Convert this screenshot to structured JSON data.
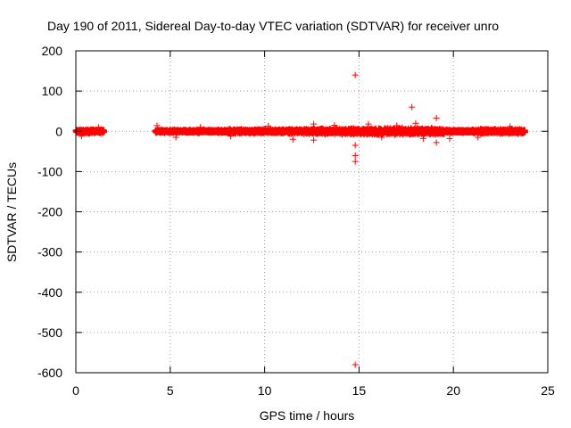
{
  "chart_data": {
    "type": "scatter",
    "title": "Day 190 of 2011, Sidereal Day-to-day VTEC variation (SDTVAR) for receiver unro",
    "xlabel": "GPS time / hours",
    "ylabel": "SDTVAR / TECUs",
    "xlim": [
      0,
      25
    ],
    "ylim": [
      -600,
      200
    ],
    "x_ticks": [
      0,
      5,
      10,
      15,
      20,
      25
    ],
    "y_ticks": [
      -600,
      -500,
      -400,
      -300,
      -200,
      -100,
      0,
      100,
      200
    ],
    "x_tick_labels": [
      "0",
      "5",
      "10",
      "15",
      "20",
      "25"
    ],
    "y_tick_labels": [
      "-600",
      "-500",
      "-400",
      "-300",
      "-200",
      "-100",
      "0",
      "100",
      "200"
    ],
    "grid": true,
    "marker": "+",
    "marker_color": "#ff0000",
    "series": [
      {
        "name": "SDTVAR",
        "dense_bands": [
          {
            "x_start": 0.0,
            "x_end": 1.5,
            "y_center": 0,
            "y_spread": 6
          },
          {
            "x_start": 4.2,
            "x_end": 8.0,
            "y_center": 0,
            "y_spread": 5
          },
          {
            "x_start": 8.0,
            "x_end": 12.5,
            "y_center": 0,
            "y_spread": 7
          },
          {
            "x_start": 12.5,
            "x_end": 14.5,
            "y_center": 0,
            "y_spread": 9
          },
          {
            "x_start": 14.5,
            "x_end": 19.5,
            "y_center": 0,
            "y_spread": 10
          },
          {
            "x_start": 19.5,
            "x_end": 21.0,
            "y_center": 0,
            "y_spread": 5
          },
          {
            "x_start": 21.0,
            "x_end": 23.8,
            "y_center": 0,
            "y_spread": 7
          }
        ],
        "points": [
          {
            "x": 14.8,
            "y": 140
          },
          {
            "x": 14.8,
            "y": -35
          },
          {
            "x": 14.8,
            "y": -60
          },
          {
            "x": 14.8,
            "y": -75
          },
          {
            "x": 14.8,
            "y": -580
          },
          {
            "x": 17.8,
            "y": 60
          },
          {
            "x": 19.1,
            "y": 33
          },
          {
            "x": 19.1,
            "y": -28
          },
          {
            "x": 19.8,
            "y": -18
          },
          {
            "x": 4.3,
            "y": 14
          },
          {
            "x": 5.3,
            "y": -15
          },
          {
            "x": 6.6,
            "y": 10
          },
          {
            "x": 8.2,
            "y": -12
          },
          {
            "x": 10.2,
            "y": 13
          },
          {
            "x": 11.5,
            "y": -20
          },
          {
            "x": 12.6,
            "y": 18
          },
          {
            "x": 12.6,
            "y": -22
          },
          {
            "x": 13.7,
            "y": 15
          },
          {
            "x": 15.5,
            "y": 18
          },
          {
            "x": 16.2,
            "y": -15
          },
          {
            "x": 17.0,
            "y": 14
          },
          {
            "x": 18.0,
            "y": 20
          },
          {
            "x": 18.4,
            "y": -18
          },
          {
            "x": 21.3,
            "y": -15
          },
          {
            "x": 23.0,
            "y": 12
          },
          {
            "x": 0.3,
            "y": -12
          },
          {
            "x": 1.2,
            "y": 10
          }
        ]
      }
    ]
  }
}
